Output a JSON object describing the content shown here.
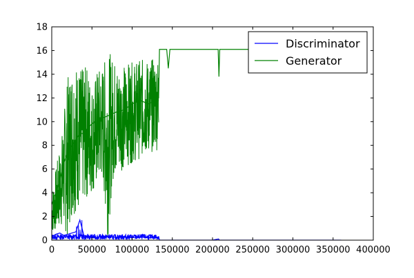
{
  "chart_data": {
    "type": "line",
    "title": "",
    "xlabel": "",
    "ylabel": "",
    "xlim": [
      0,
      400000
    ],
    "ylim": [
      0,
      18
    ],
    "x_ticks": [
      0,
      50000,
      100000,
      150000,
      200000,
      250000,
      300000,
      350000,
      400000
    ],
    "x_tick_labels": [
      "0",
      "50000",
      "100000",
      "150000",
      "200000",
      "250000",
      "300000",
      "350000",
      "400000"
    ],
    "y_ticks": [
      0,
      2,
      4,
      6,
      8,
      10,
      12,
      14,
      16,
      18
    ],
    "y_tick_labels": [
      "0",
      "2",
      "4",
      "6",
      "8",
      "10",
      "12",
      "14",
      "16",
      "18"
    ],
    "grid": false,
    "legend_position": "top-right",
    "series": [
      {
        "name": "Discriminator",
        "color": "#0000ff",
        "x": [
          0,
          5000,
          10000,
          15000,
          20000,
          25000,
          30000,
          35000,
          40000,
          45000,
          50000,
          55000,
          60000,
          70000,
          80000,
          90000,
          100000,
          110000,
          120000,
          130000,
          133000,
          134000,
          150000,
          200000,
          207500,
          208500,
          210000,
          250000,
          300000,
          360000
        ],
        "values": [
          0.3,
          0.5,
          0.6,
          0.4,
          0.5,
          0.6,
          0.7,
          1.7,
          0.4,
          0.3,
          0.3,
          0.2,
          0.3,
          0.3,
          0.25,
          0.3,
          0.2,
          0.25,
          0.2,
          0.2,
          0.3,
          0.0,
          0.0,
          0.0,
          0.1,
          0.0,
          0.0,
          0.0,
          0.0,
          0.0
        ]
      },
      {
        "name": "Generator",
        "color": "#008000",
        "x": [
          0,
          5000,
          10000,
          15000,
          20000,
          25000,
          30000,
          35000,
          40000,
          45000,
          50000,
          53000,
          55000,
          60000,
          70000,
          80000,
          90000,
          100000,
          110000,
          120000,
          130000,
          133000,
          134000,
          143000,
          145000,
          147000,
          150000,
          200000,
          207000,
          208000,
          209000,
          210000,
          250000,
          300000,
          360000
        ],
        "values": [
          3.0,
          4.0,
          5.0,
          6.5,
          7.5,
          8.0,
          8.5,
          9.0,
          9.0,
          9.5,
          9.8,
          10.0,
          8.5,
          10.2,
          10.5,
          10.8,
          11.0,
          11.5,
          11.8,
          11.5,
          11.8,
          12.0,
          16.1,
          16.1,
          14.5,
          16.1,
          16.1,
          16.1,
          16.1,
          13.8,
          16.1,
          16.1,
          16.1,
          16.1,
          16.1
        ],
        "band_upper": [
          4.0,
          6.5,
          9.0,
          13.5,
          15.2,
          15.0,
          14.5,
          14.8,
          13.0,
          14.5,
          14.8,
          16.0,
          15.5,
          14.8,
          14.8,
          15.0,
          15.0,
          15.2,
          15.3,
          15.2,
          15.4,
          15.6
        ],
        "band_lower": [
          0.5,
          0.8,
          1.0,
          0.3,
          2.0,
          2.5,
          3.0,
          3.5,
          4.0,
          4.5,
          5.0,
          0.1,
          5.0,
          5.5,
          6.0,
          6.3,
          6.5,
          6.8,
          7.0,
          7.2,
          7.5,
          7.6
        ]
      }
    ]
  },
  "colors": {
    "background": "#ffffff",
    "axes": "#000000"
  }
}
